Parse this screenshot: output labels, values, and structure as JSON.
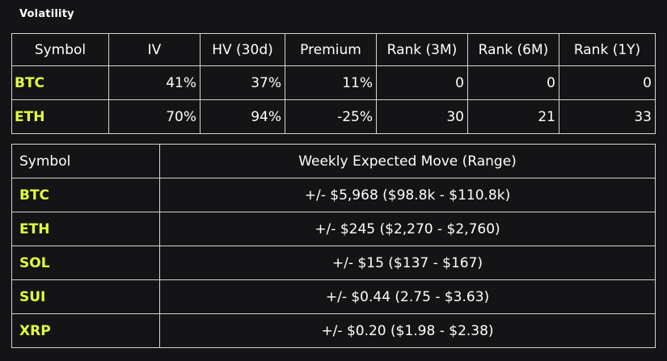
{
  "title": "Volatility",
  "volatility_table": {
    "headers": [
      "Symbol",
      "IV",
      "HV (30d)",
      "Premium",
      "Rank (3M)",
      "Rank (6M)",
      "Rank (1Y)"
    ],
    "rows": [
      {
        "symbol": "BTC",
        "iv": "41%",
        "hv": "37%",
        "premium": "11%",
        "rank3m": "0",
        "rank6m": "0",
        "rank1y": "0"
      },
      {
        "symbol": "ETH",
        "iv": "70%",
        "hv": "94%",
        "premium": "-25%",
        "rank3m": "30",
        "rank6m": "21",
        "rank1y": "33"
      }
    ]
  },
  "expected_move_table": {
    "headers": [
      "Symbol",
      "Weekly Expected Move (Range)"
    ],
    "rows": [
      {
        "symbol": "BTC",
        "move": "+/- $5,968 ($98.8k - $110.8k)"
      },
      {
        "symbol": "ETH",
        "move": "+/- $245 ($2,270 - $2,760)"
      },
      {
        "symbol": "SOL",
        "move": "+/- $15 ($137 - $167)"
      },
      {
        "symbol": "SUI",
        "move": "+/- $0.44 (2.75 - $3.63)"
      },
      {
        "symbol": "XRP",
        "move": "+/- $0.20 ($1.98 - $2.38)"
      }
    ]
  },
  "colors": {
    "background": "#141416",
    "symbol_highlight": "#e3ff3c",
    "border": "#d4d4d4",
    "text": "#ffffff"
  }
}
